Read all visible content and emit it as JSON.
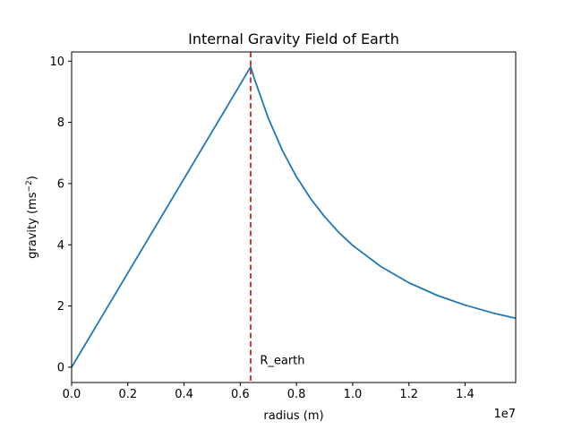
{
  "chart_data": {
    "type": "line",
    "title": "Internal Gravity Field of Earth",
    "xlabel": "radius (m)",
    "ylabel_text": "gravity (ms",
    "ylabel_superscript": "−2",
    "ylabel_close": ")",
    "x_offset_label": "1e7",
    "xlim": [
      0,
      15800000
    ],
    "ylim": [
      -0.5,
      10.3
    ],
    "x_ticks": [
      0,
      2000000,
      4000000,
      6000000,
      8000000,
      10000000,
      12000000,
      14000000
    ],
    "x_tick_labels": [
      "0.0",
      "0.2",
      "0.4",
      "0.6",
      "0.8",
      "1.0",
      "1.2",
      "1.4"
    ],
    "y_ticks": [
      0,
      2,
      4,
      6,
      8,
      10
    ],
    "y_tick_labels": [
      "0",
      "2",
      "4",
      "6",
      "8",
      "10"
    ],
    "grid": false,
    "series": [
      {
        "color": "#1f77b4",
        "x": [
          0,
          1000000,
          2000000,
          3000000,
          4000000,
          5000000,
          6000000,
          6370000,
          6500000,
          7000000,
          7500000,
          8000000,
          8500000,
          9000000,
          9500000,
          10000000,
          11000000,
          12000000,
          13000000,
          14000000,
          15000000,
          15800000
        ],
        "y": [
          0,
          1.54,
          3.08,
          4.62,
          6.16,
          7.7,
          9.24,
          9.82,
          9.43,
          8.13,
          7.08,
          6.22,
          5.51,
          4.92,
          4.41,
          3.98,
          3.29,
          2.76,
          2.35,
          2.03,
          1.77,
          1.6
        ]
      }
    ],
    "vline": {
      "x": 6370000,
      "color": "#d62728",
      "style": "dashed"
    },
    "annotation": {
      "text": "R_earth",
      "x": 6700000,
      "y": 0.1,
      "color": "#ff0000"
    }
  }
}
